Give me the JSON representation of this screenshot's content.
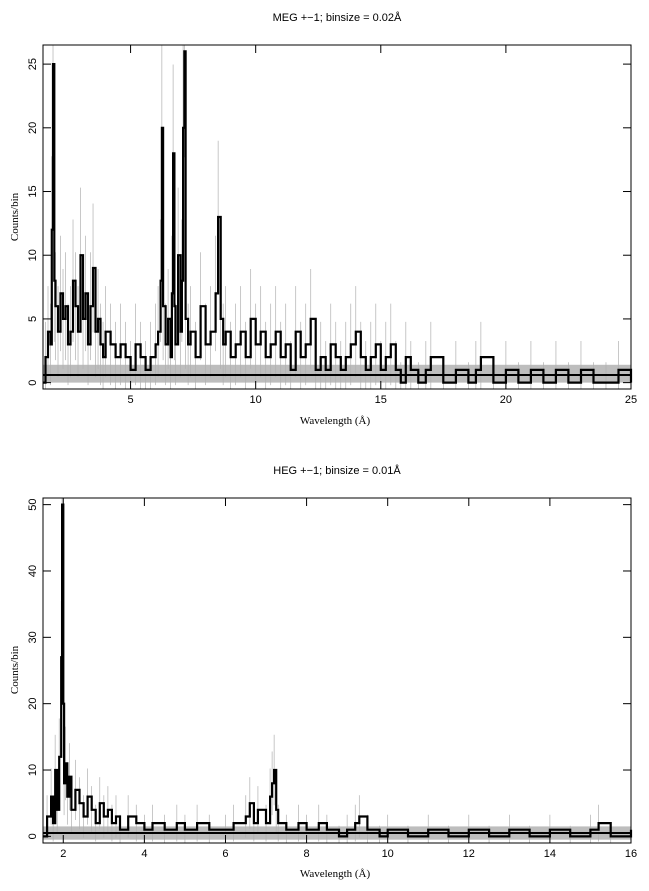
{
  "chart_data": [
    {
      "type": "line",
      "title": "MEG +−1; binsize = 0.02Å",
      "xlabel": "Wavelength (Å)",
      "ylabel": "Counts/bin",
      "xlim": [
        1.5,
        25
      ],
      "ylim": [
        -0.5,
        26.5
      ],
      "xticks": [
        5,
        10,
        15,
        20,
        25
      ],
      "yticks": [
        0,
        5,
        10,
        15,
        20,
        25
      ],
      "background_level": 0.6,
      "background_band": [
        0.0,
        1.4
      ],
      "series": [
        {
          "x": [
            1.5,
            1.6,
            1.7,
            1.8,
            1.85,
            1.9,
            1.95,
            2.0,
            2.1,
            2.2,
            2.3,
            2.4,
            2.5,
            2.6,
            2.7,
            2.8,
            2.9,
            3.0,
            3.1,
            3.2,
            3.3,
            3.4,
            3.5,
            3.6,
            3.7,
            3.8,
            3.9,
            4.0,
            4.2,
            4.4,
            4.6,
            4.8,
            5.0,
            5.2,
            5.4,
            5.6,
            5.8,
            6.0,
            6.1,
            6.2,
            6.25,
            6.3,
            6.4,
            6.5,
            6.6,
            6.65,
            6.7,
            6.75,
            6.8,
            6.9,
            7.0,
            7.05,
            7.1,
            7.15,
            7.2,
            7.3,
            7.4,
            7.6,
            7.8,
            8.0,
            8.2,
            8.4,
            8.5,
            8.6,
            8.7,
            8.8,
            9.0,
            9.2,
            9.4,
            9.6,
            9.8,
            10.0,
            10.2,
            10.4,
            10.6,
            10.8,
            11.0,
            11.2,
            11.4,
            11.6,
            11.8,
            12.0,
            12.2,
            12.4,
            12.6,
            12.8,
            13.0,
            13.2,
            13.4,
            13.6,
            13.8,
            14.0,
            14.2,
            14.4,
            14.6,
            14.8,
            15.0,
            15.2,
            15.4,
            15.6,
            15.8,
            16.0,
            16.2,
            16.5,
            16.8,
            17.0,
            17.5,
            18.0,
            18.5,
            18.8,
            19.0,
            19.5,
            20.0,
            20.5,
            21.0,
            21.5,
            22.0,
            22.5,
            23.0,
            23.5,
            24.0,
            24.5,
            25.0
          ],
          "y": [
            0,
            2,
            4,
            3,
            12,
            25,
            8,
            6,
            4,
            7,
            5,
            6,
            3,
            4,
            8,
            6,
            4,
            10,
            5,
            7,
            3,
            6,
            9,
            4,
            5,
            3,
            2,
            4,
            3,
            2,
            3,
            2,
            1,
            3,
            2,
            1,
            2,
            3,
            4,
            8,
            20,
            6,
            3,
            5,
            2,
            7,
            18,
            6,
            3,
            10,
            4,
            8,
            20,
            26,
            5,
            3,
            4,
            2,
            6,
            3,
            4,
            7,
            13,
            5,
            3,
            4,
            2,
            3,
            4,
            2,
            5,
            3,
            4,
            2,
            3,
            4,
            2,
            3,
            1,
            4,
            2,
            3,
            5,
            1,
            2,
            1,
            3,
            2,
            1,
            2,
            3,
            4,
            2,
            1,
            2,
            3,
            1,
            2,
            3,
            1,
            0,
            2,
            1,
            0,
            1,
            2,
            0,
            1,
            0,
            1,
            2,
            0,
            1,
            0,
            1,
            0,
            1,
            0,
            1,
            0,
            0,
            1,
            0
          ]
        }
      ]
    },
    {
      "type": "line",
      "title": "HEG +−1; binsize = 0.01Å",
      "xlabel": "Wavelength (Å)",
      "ylabel": "Counts/bin",
      "xlim": [
        1.5,
        16
      ],
      "ylim": [
        -1,
        51
      ],
      "xticks": [
        2,
        4,
        6,
        8,
        10,
        12,
        14,
        16
      ],
      "yticks": [
        0,
        10,
        20,
        30,
        40,
        50
      ],
      "background_level": 0.5,
      "background_band": [
        -0.5,
        1.5
      ],
      "series": [
        {
          "x": [
            1.5,
            1.6,
            1.7,
            1.75,
            1.8,
            1.85,
            1.9,
            1.95,
            1.97,
            2.0,
            2.02,
            2.05,
            2.1,
            2.15,
            2.2,
            2.3,
            2.4,
            2.5,
            2.6,
            2.7,
            2.8,
            2.9,
            3.0,
            3.1,
            3.2,
            3.3,
            3.4,
            3.6,
            3.8,
            4.0,
            4.2,
            4.5,
            4.8,
            5.0,
            5.3,
            5.6,
            6.0,
            6.2,
            6.5,
            6.6,
            6.7,
            6.8,
            7.0,
            7.1,
            7.15,
            7.2,
            7.25,
            7.3,
            7.5,
            7.8,
            8.0,
            8.3,
            8.5,
            8.8,
            9.0,
            9.2,
            9.3,
            9.5,
            9.8,
            10.0,
            10.5,
            11.0,
            11.5,
            12.0,
            12.5,
            13.0,
            13.5,
            14.0,
            14.5,
            15.0,
            15.2,
            15.5,
            16.0
          ],
          "y": [
            0,
            3,
            6,
            2,
            10,
            4,
            12,
            27,
            50,
            20,
            8,
            11,
            6,
            9,
            4,
            7,
            5,
            3,
            6,
            4,
            2,
            5,
            3,
            4,
            2,
            3,
            1,
            3,
            2,
            1,
            2,
            1,
            2,
            1,
            2,
            1,
            1,
            2,
            3,
            5,
            2,
            4,
            2,
            6,
            8,
            10,
            4,
            2,
            1,
            2,
            1,
            2,
            1,
            0,
            1,
            2,
            3,
            1,
            0,
            1,
            0,
            1,
            0,
            1,
            0,
            1,
            0,
            1,
            0,
            1,
            2,
            0,
            1
          ]
        }
      ]
    }
  ]
}
